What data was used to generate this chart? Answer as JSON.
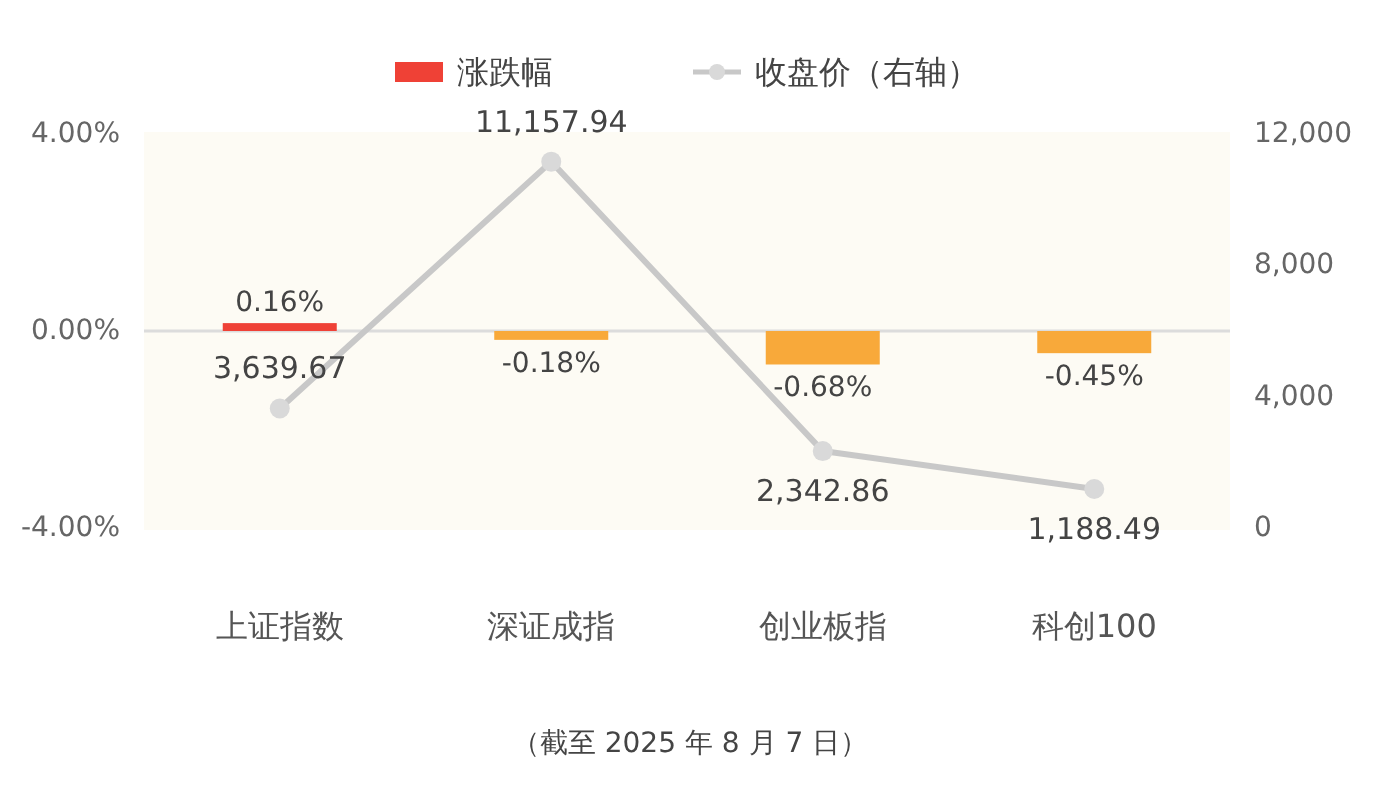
{
  "chart_data": {
    "type": "bar",
    "categories": [
      "上证指数",
      "深证成指",
      "创业板指",
      "科创100"
    ],
    "series": [
      {
        "name": "涨跌幅",
        "color": "#ef4136",
        "colors": [
          "#ef4136",
          "#f8a93a",
          "#f8a93a",
          "#f8a93a"
        ],
        "values": [
          0.16,
          -0.18,
          -0.68,
          -0.45
        ],
        "value_labels": [
          "0.16%",
          "-0.18%",
          "-0.68%",
          "-0.45%"
        ]
      },
      {
        "name": "收盘价（右轴）",
        "type": "line",
        "axis": "y2",
        "color": "#c8c8c8",
        "marker": "circle",
        "values": [
          3639.67,
          11157.94,
          2342.86,
          1188.49
        ],
        "value_labels": [
          "3,639.67",
          "11,157.94",
          "2,342.86",
          "1,188.49"
        ]
      }
    ],
    "ylim": [
      -4,
      4
    ],
    "yticks": [
      {
        "value": -4,
        "label": "-4.00%"
      },
      {
        "value": 0,
        "label": "0.00%"
      },
      {
        "value": 4,
        "label": "4.00%"
      }
    ],
    "y2lim": [
      0,
      12000
    ],
    "y2ticks": [
      0,
      {
        "value": 4000,
        "label": "4,000"
      },
      {
        "value": 8000,
        "label": "8,000"
      },
      {
        "value": 12000,
        "label": "12,000"
      }
    ],
    "ref_lines": [
      {
        "axis": "y",
        "value": 0,
        "color": "#dcdcdc"
      }
    ],
    "legend": "top",
    "annotations": [
      "（截至 2025 年 8 月 7 日）"
    ]
  }
}
